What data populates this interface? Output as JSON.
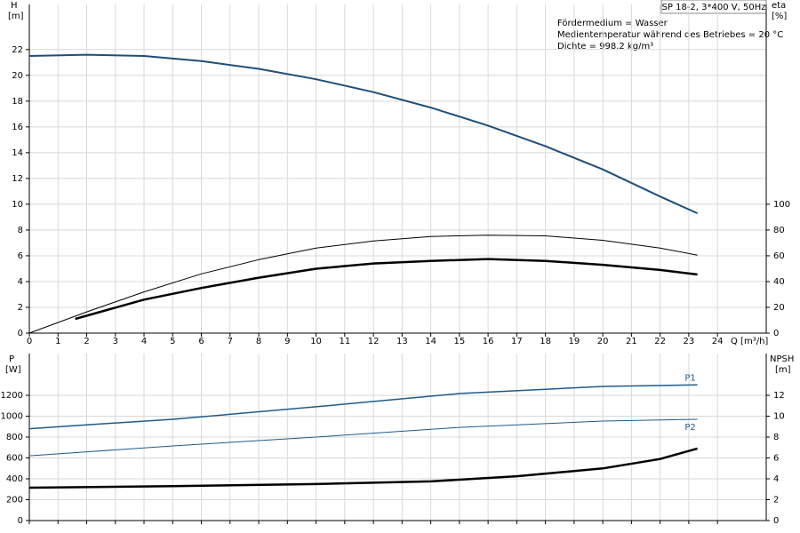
{
  "chart_data": [
    {
      "type": "line",
      "title": "SP 18-2, 3*400 V, 50Hz",
      "annotations": [
        "Fördermedium = Wasser",
        "Medientemperatur während des Betriebes = 20 °C",
        "Dichte = 998.2 kg/m³"
      ],
      "ylabel": "H",
      "yunit": "[m]",
      "y2label": "eta",
      "y2unit": "[%]",
      "xlabel": "Q [m³/h]",
      "xlim": [
        0,
        25.7
      ],
      "xticks": [
        0,
        1,
        2,
        3,
        4,
        5,
        6,
        7,
        8,
        9,
        10,
        11,
        12,
        13,
        14,
        15,
        16,
        17,
        18,
        19,
        20,
        21,
        22,
        23,
        24
      ],
      "ylim": [
        0,
        25.5
      ],
      "yticks": [
        0,
        2,
        4,
        6,
        8,
        10,
        12,
        14,
        16,
        18,
        20,
        22
      ],
      "y2lim": [
        0,
        255
      ],
      "y2ticks": [
        0,
        20,
        40,
        60,
        80,
        100
      ],
      "grid": true,
      "series": [
        {
          "color": "#1f4e79",
          "line_width": 2,
          "x": [
            0,
            2,
            4,
            6,
            8,
            10,
            12,
            14,
            16,
            18,
            20,
            22,
            23.3
          ],
          "values": [
            21.5,
            21.6,
            21.5,
            21.1,
            20.5,
            19.7,
            18.7,
            17.5,
            16.1,
            14.5,
            12.7,
            10.6,
            9.3
          ]
        },
        {
          "color": "#000000",
          "line_width": 1,
          "axis": "y2",
          "x": [
            0,
            2,
            4,
            6,
            8,
            10,
            12,
            14,
            16,
            18,
            20,
            22,
            23.3
          ],
          "values": [
            0,
            16.5,
            32,
            46,
            57,
            66,
            71.5,
            75,
            76,
            75.5,
            72,
            66,
            60.5
          ]
        },
        {
          "color": "#000000",
          "line_width": 2.5,
          "axis": "y2",
          "x": [
            1.6,
            4,
            6,
            8,
            10,
            12,
            14,
            16,
            18,
            20,
            22,
            23.3
          ],
          "values": [
            11,
            26,
            35,
            43,
            50,
            54,
            56,
            57.5,
            56,
            53,
            49,
            45.5
          ]
        }
      ]
    },
    {
      "type": "line",
      "ylabel": "P",
      "yunit": "[W]",
      "y2label": "NPSH",
      "y2unit": "[m]",
      "xlim": [
        0,
        25.7
      ],
      "xticks": [
        0,
        1,
        2,
        3,
        4,
        5,
        6,
        7,
        8,
        9,
        10,
        11,
        12,
        13,
        14,
        15,
        16,
        17,
        18,
        19,
        20,
        21,
        22,
        23,
        24
      ],
      "ylim": [
        0,
        1600
      ],
      "yticks": [
        0,
        200,
        400,
        600,
        800,
        1000,
        1200
      ],
      "y2lim": [
        0,
        16
      ],
      "y2ticks": [
        0,
        2,
        4,
        6,
        8,
        10,
        12
      ],
      "grid": true,
      "series": [
        {
          "name": "P1",
          "color": "#1f5a8a",
          "line_width": 1.5,
          "x": [
            0,
            1.6,
            5,
            10,
            15,
            20,
            23.3
          ],
          "values": [
            880,
            910,
            970,
            1090,
            1217,
            1285,
            1300
          ]
        },
        {
          "name": "P2",
          "color": "#1f5a8a",
          "line_width": 1,
          "x": [
            0,
            5,
            10,
            15,
            20,
            23.3
          ],
          "values": [
            620,
            715,
            800,
            893,
            953,
            970
          ]
        },
        {
          "color": "#000000",
          "line_width": 2.5,
          "axis": "y2",
          "x": [
            0,
            5,
            10,
            14,
            17,
            20,
            22,
            23.3
          ],
          "values": [
            3.15,
            3.3,
            3.5,
            3.75,
            4.25,
            5.0,
            5.9,
            6.9
          ]
        }
      ]
    }
  ]
}
